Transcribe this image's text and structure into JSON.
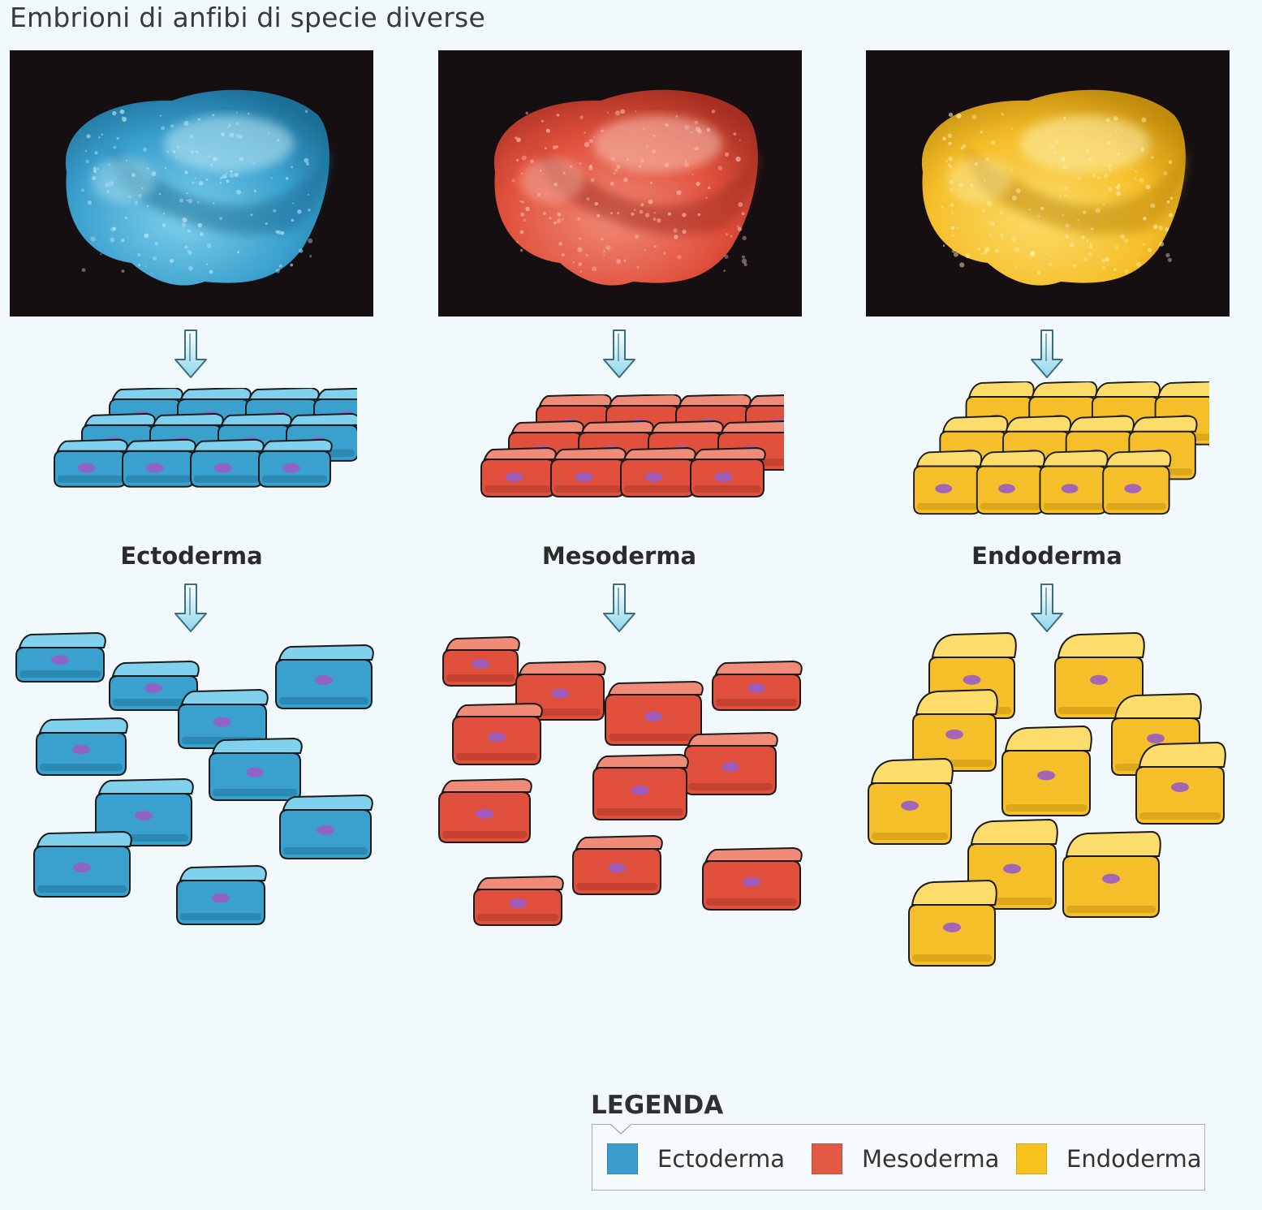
{
  "title": "Embrioni di anfibi di specie diverse",
  "layers": [
    {
      "label": "Ectoderma",
      "color": "#3aa0cd",
      "dark": "#1a6e97",
      "light": "#7fd1ee",
      "glow": "#bfeaf6"
    },
    {
      "label": "Mesoderma",
      "color": "#e0503c",
      "dark": "#a52e21",
      "light": "#f08b77",
      "glow": "#f9c5b6"
    },
    {
      "label": "Endoderma",
      "color": "#f5bf2a",
      "dark": "#c08a0c",
      "light": "#fcdc6a",
      "glow": "#fdf0b0"
    }
  ],
  "legend": {
    "title": "LEGENDA",
    "items": [
      {
        "label": "Ectoderma",
        "color": "#3a9ccc"
      },
      {
        "label": "Mesoderma",
        "color": "#e35a44"
      },
      {
        "label": "Endoderma",
        "color": "#f7c21e"
      }
    ]
  }
}
